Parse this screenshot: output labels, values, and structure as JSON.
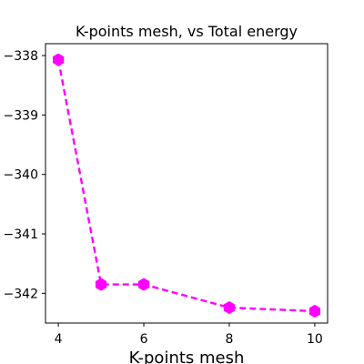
{
  "chart_data": {
    "type": "line",
    "title": "K-points mesh, vs Total energy",
    "xlabel": "K-points mesh",
    "ylabel": "",
    "x": [
      4,
      5,
      6,
      8,
      10
    ],
    "series": [
      {
        "values": [
          -338.07,
          -341.85,
          -341.85,
          -342.24,
          -342.3
        ]
      }
    ],
    "xlim": [
      3.7,
      10.3
    ],
    "ylim": [
      -342.5,
      -337.8
    ],
    "xticks": [
      4,
      6,
      8,
      10
    ],
    "yticks": [
      -338,
      -339,
      -340,
      -341,
      -342
    ],
    "xtick_labels": [
      "4",
      "6",
      "8",
      "10"
    ],
    "ytick_labels": [
      "−338",
      "−339",
      "−340",
      "−341",
      "−342"
    ],
    "line_color": "#ff00ff",
    "line_style": "dashed",
    "marker": "hexagon",
    "grid": false,
    "legend": "none"
  }
}
